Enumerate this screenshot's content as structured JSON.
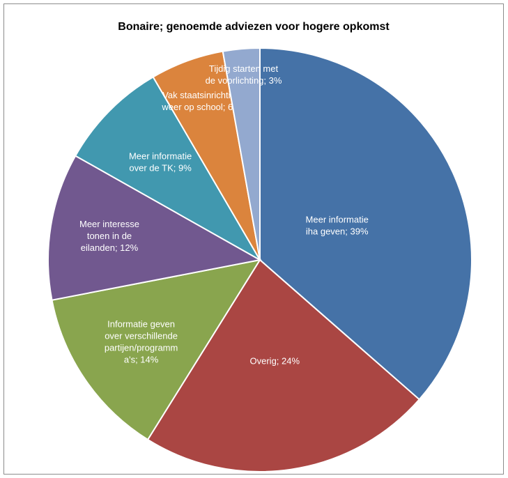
{
  "chart_data": {
    "type": "pie",
    "title": "Bonaire; genoemde adviezen voor hogere opkomst",
    "slices": [
      {
        "label": "Meer informatie iha geven; 39%",
        "value": 39,
        "color": "#4572A7",
        "lines": [
          "Meer informatie",
          "iha geven; 39%"
        ]
      },
      {
        "label": "Overig; 24%",
        "value": 24,
        "color": "#AA4643",
        "lines": [
          "Overig; 24%"
        ]
      },
      {
        "label": "Informatie geven over verschillende partijen/programm a's; 14%",
        "value": 14,
        "color": "#89A54E",
        "lines": [
          "Informatie geven",
          "over verschillende",
          "partijen/programm",
          "a's; 14%"
        ]
      },
      {
        "label": "Meer interesse tonen in de eilanden; 12%",
        "value": 12,
        "color": "#71588F",
        "lines": [
          "Meer interesse",
          "tonen in de",
          "eilanden; 12%"
        ]
      },
      {
        "label": "Meer informatie over de TK; 9%",
        "value": 9,
        "color": "#4198AF",
        "lines": [
          "Meer informatie",
          "over de TK; 9%"
        ]
      },
      {
        "label": "Vak staatsinrichting weer op school; 6%",
        "value": 6,
        "color": "#DB843D",
        "lines": [
          "Vak staatsinrichting",
          "weer op school; 6%"
        ]
      },
      {
        "label": "Tijdig starten met de voorlichting; 3%",
        "value": 3,
        "color": "#93A9CF",
        "lines": [
          "Tijdig starten met",
          "de voorlichting; 3%"
        ]
      }
    ],
    "legend": "none"
  }
}
